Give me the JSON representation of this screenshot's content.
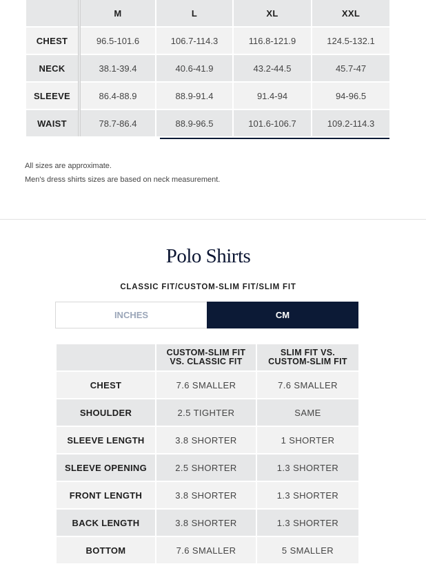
{
  "dress_table": {
    "headers": [
      "M",
      "L",
      "XL",
      "XXL"
    ],
    "rows": [
      {
        "label": "CHEST",
        "values": [
          "96.5-101.6",
          "106.7-114.3",
          "116.8-121.9",
          "124.5-132.1"
        ]
      },
      {
        "label": "NECK",
        "values": [
          "38.1-39.4",
          "40.6-41.9",
          "43.2-44.5",
          "45.7-47"
        ]
      },
      {
        "label": "SLEEVE",
        "values": [
          "86.4-88.9",
          "88.9-91.4",
          "91.4-94",
          "94-96.5"
        ]
      },
      {
        "label": "WAIST",
        "values": [
          "78.7-86.4",
          "88.9-96.5",
          "101.6-106.7",
          "109.2-114.3"
        ]
      }
    ]
  },
  "notes": [
    "All sizes are approximate.",
    "Men's dress shirts sizes are based on neck measurement."
  ],
  "polo": {
    "title": "Polo Shirts",
    "subtitle": "CLASSIC FIT/CUSTOM-SLIM FIT/SLIM FIT",
    "units": {
      "inches": "INCHES",
      "cm": "CM",
      "selected": "CM"
    },
    "headers": [
      "CUSTOM-SLIM FIT\nVS. CLASSIC FIT",
      "SLIM FIT VS.\nCUSTOM-SLIM FIT"
    ],
    "rows": [
      {
        "label": "CHEST",
        "values": [
          "7.6 SMALLER",
          "7.6 SMALLER"
        ]
      },
      {
        "label": "SHOULDER",
        "values": [
          "2.5 TIGHTER",
          "SAME"
        ]
      },
      {
        "label": "SLEEVE LENGTH",
        "values": [
          "3.8 SHORTER",
          "1 SHORTER"
        ]
      },
      {
        "label": "SLEEVE OPENING",
        "values": [
          "2.5 SHORTER",
          "1.3 SHORTER"
        ]
      },
      {
        "label": "FRONT LENGTH",
        "values": [
          "3.8 SHORTER",
          "1.3 SHORTER"
        ]
      },
      {
        "label": "BACK LENGTH",
        "values": [
          "3.8 SHORTER",
          "1.3 SHORTER"
        ]
      },
      {
        "label": "BOTTOM",
        "values": [
          "7.6 SMALLER",
          "5 SMALLER"
        ]
      }
    ]
  },
  "colors": {
    "navy": "#0c1a36",
    "cell_dark": "#e6e7e8",
    "cell_light": "#f2f2f2",
    "inactive_tab_text": "#9aa5b8"
  }
}
